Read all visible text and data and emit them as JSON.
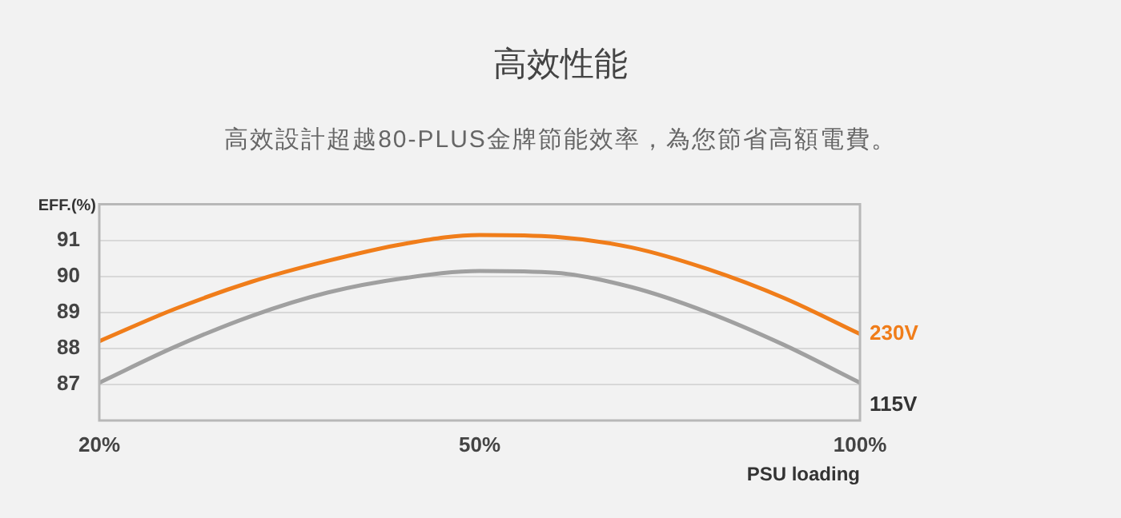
{
  "chart_data": {
    "type": "line",
    "title": "高效性能",
    "subtitle": "高效設計超越80-PLUS金牌節能效率，為您節省高額電費。",
    "xlabel": "PSU loading",
    "ylabel": "EFF.(%)",
    "categories": [
      "20%",
      null,
      null,
      null,
      null,
      "50%",
      null,
      null,
      null,
      null,
      "100%"
    ],
    "series": [
      {
        "name": "230V",
        "color": "#f07d1a",
        "values": [
          88.2,
          89.1,
          89.85,
          90.43,
          90.9,
          91.15,
          91.1,
          90.8,
          90.2,
          89.4,
          88.4
        ]
      },
      {
        "name": "115V",
        "color": "#a0a0a0",
        "values": [
          87.05,
          88.05,
          88.9,
          89.55,
          89.95,
          90.15,
          90.1,
          89.7,
          89.0,
          88.1,
          87.05
        ]
      }
    ],
    "ylim": [
      86,
      92
    ],
    "yticks": [
      87,
      88,
      89,
      90,
      91
    ],
    "grid": "y",
    "legend": false,
    "marker": "none",
    "line_style": "solid"
  }
}
